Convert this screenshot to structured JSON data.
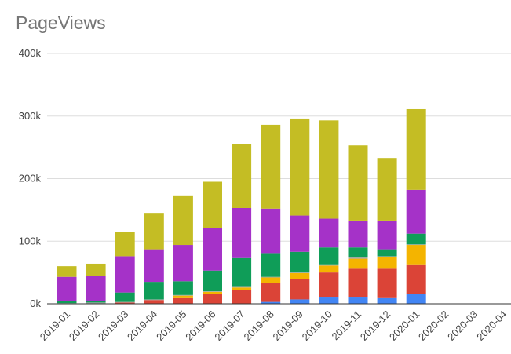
{
  "chart_data": {
    "type": "bar",
    "stacked": true,
    "title": "PageViews",
    "xlabel": "",
    "ylabel": "",
    "ylim": [
      0,
      400000
    ],
    "y_ticks": [
      0,
      100000,
      200000,
      300000,
      400000
    ],
    "y_tick_labels": [
      "0k",
      "100k",
      "200k",
      "300k",
      "400k"
    ],
    "grid": true,
    "legend": "none",
    "categories": [
      "2019-01",
      "2019-02",
      "2019-03",
      "2019-04",
      "2019-05",
      "2019-06",
      "2019-07",
      "2019-08",
      "2019-09",
      "2019-10",
      "2019-11",
      "2019-12",
      "2020-01",
      "2020-02",
      "2020-03",
      "2020-04"
    ],
    "series": [
      {
        "color": "#4285f4",
        "values": [
          0,
          0,
          0,
          0,
          0,
          0,
          0,
          3000,
          7000,
          10000,
          10000,
          9000,
          16000,
          0,
          0,
          0
        ]
      },
      {
        "color": "#db4437",
        "values": [
          0,
          0,
          2000,
          6000,
          9000,
          16000,
          22000,
          30000,
          33000,
          40000,
          46000,
          47000,
          47000,
          0,
          0,
          0
        ]
      },
      {
        "color": "#f4b400",
        "values": [
          0,
          0,
          0,
          0,
          4000,
          3000,
          4000,
          9000,
          9000,
          11000,
          16000,
          18000,
          31000,
          0,
          0,
          0
        ]
      },
      {
        "color": "#a0aaa4",
        "values": [
          1000,
          2000,
          1000,
          1000,
          1000,
          1000,
          1000,
          1000,
          1000,
          2000,
          2000,
          2000,
          1000,
          0,
          0,
          0
        ]
      },
      {
        "color": "#0f9d58",
        "values": [
          3000,
          3000,
          15000,
          28000,
          22000,
          33000,
          46000,
          38000,
          33000,
          27000,
          16000,
          11000,
          17000,
          0,
          0,
          0
        ]
      },
      {
        "color": "#a532c8",
        "values": [
          39000,
          40000,
          58000,
          52000,
          58000,
          68000,
          80000,
          71000,
          58000,
          46000,
          43000,
          46000,
          70000,
          0,
          0,
          0
        ]
      },
      {
        "color": "#c4bd24",
        "values": [
          17000,
          19000,
          39000,
          57000,
          78000,
          74000,
          102000,
          134000,
          155000,
          157000,
          120000,
          100000,
          129000,
          0,
          0,
          0
        ]
      }
    ]
  }
}
